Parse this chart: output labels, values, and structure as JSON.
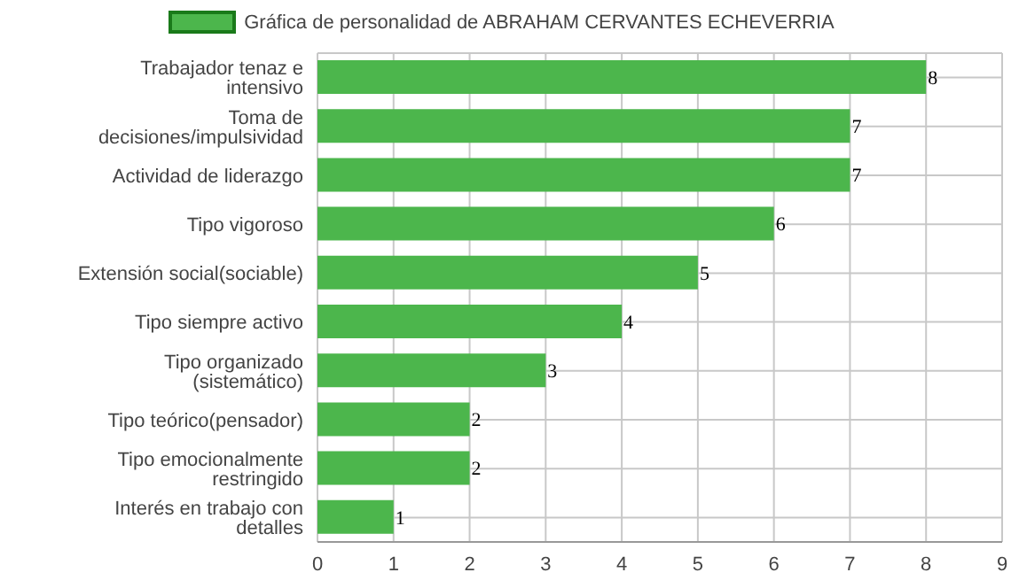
{
  "chart_data": {
    "type": "bar",
    "orientation": "horizontal",
    "categories": [
      "Trabajador tenaz e intensivo",
      "Toma de decisiones/impulsividad",
      "Actividad de liderazgo",
      "Tipo vigoroso",
      "Extensión social(sociable)",
      "Tipo siempre activo",
      "Tipo organizado (sistemático)",
      "Tipo teórico(pensador)",
      "Tipo emocionalmente restringido",
      "Interés en trabajo con detalles"
    ],
    "series": [
      {
        "name": "Gráfica de personalidad de ABRAHAM CERVANTES ECHEVERRIA",
        "color": "#4cb64c",
        "values": [
          8,
          7,
          7,
          6,
          5,
          4,
          3,
          2,
          2,
          1
        ]
      }
    ],
    "xlim": [
      0,
      9
    ],
    "xticks": [
      0,
      1,
      2,
      3,
      4,
      5,
      6,
      7,
      8,
      9
    ],
    "grid": true,
    "legend": "top",
    "data_labels": true
  }
}
